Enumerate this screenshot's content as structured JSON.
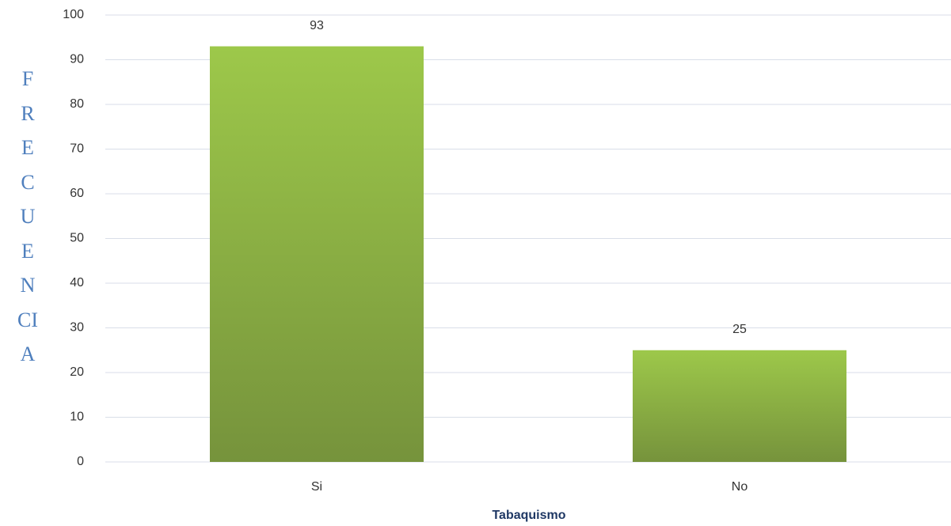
{
  "chart_data": {
    "type": "bar",
    "x_label": "Tabaquismo",
    "y_label": "FRECUENCIA",
    "categories": [
      "Si",
      "No"
    ],
    "values": [
      93,
      25
    ],
    "color_top": "#9dc84a",
    "color_bottom": "#76933c",
    "ylim": [
      0,
      100
    ],
    "yticks": [
      0,
      10,
      20,
      30,
      40,
      50,
      60,
      70,
      80,
      90,
      100
    ],
    "grid": true
  }
}
